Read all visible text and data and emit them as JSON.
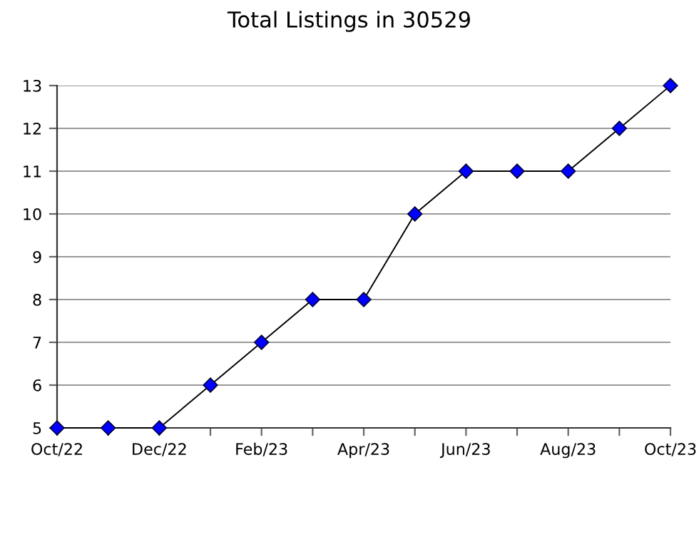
{
  "chart_data": {
    "type": "line",
    "title": "Total Listings in 30529",
    "categories": [
      "Oct/22",
      null,
      "Dec/22",
      null,
      "Feb/23",
      null,
      "Apr/23",
      null,
      "Jun/23",
      null,
      "Aug/23",
      null,
      "Oct/23"
    ],
    "series": [
      {
        "color": "#0000ff",
        "values": [
          5,
          5,
          5,
          6,
          7,
          8,
          8,
          10,
          11,
          11,
          11,
          12,
          13
        ]
      }
    ],
    "ylim": [
      5,
      13
    ],
    "yticks": [
      5,
      6,
      7,
      8,
      9,
      10,
      11,
      12,
      13
    ],
    "grid": "y",
    "marker": "diamond",
    "line_style": "solid"
  }
}
